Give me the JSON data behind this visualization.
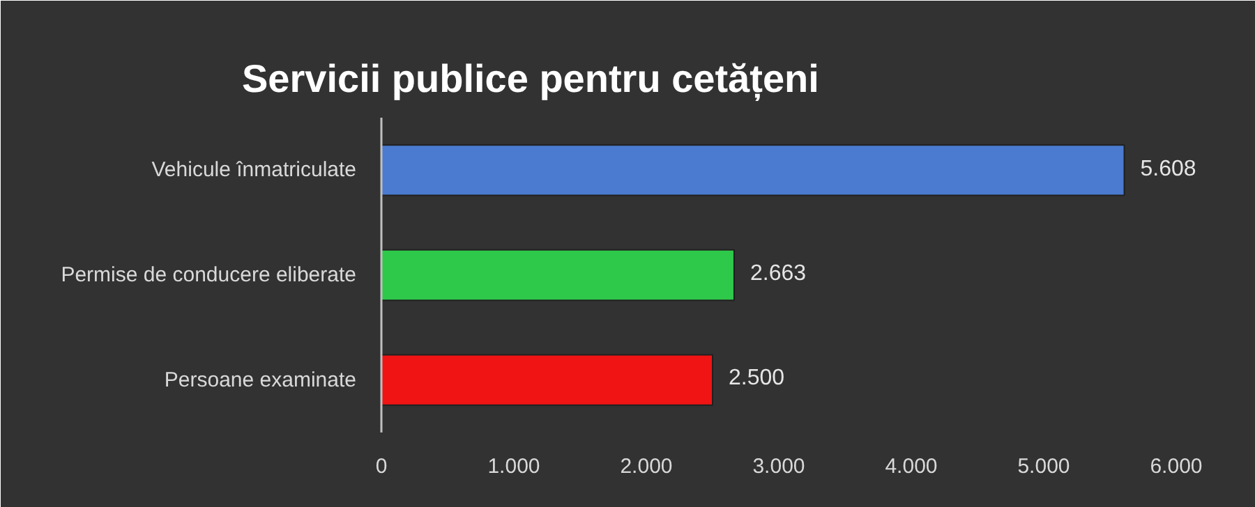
{
  "chart_data": {
    "type": "bar",
    "orientation": "horizontal",
    "title": "Servicii publice pentru cetățeni",
    "categories": [
      "Vehicule înmatriculate",
      "Permise de conducere eliberate",
      "Persoane examinate"
    ],
    "values": [
      5608,
      2663,
      2500
    ],
    "colors": [
      "#4a7bd0",
      "#2ec84a",
      "#f01414"
    ],
    "value_labels": [
      "5.608",
      "2.663",
      "2.500"
    ],
    "xlim": [
      0,
      6000
    ],
    "xticks": [
      0,
      {
        "value": 1000,
        "label": "1.000"
      },
      {
        "value": 2000,
        "label": "2.000"
      },
      {
        "value": 3000,
        "label": "3.000"
      },
      {
        "value": 4000,
        "label": "4.000"
      },
      {
        "value": 5000,
        "label": "5.000"
      },
      {
        "value": 6000,
        "label": "6.000"
      }
    ]
  }
}
